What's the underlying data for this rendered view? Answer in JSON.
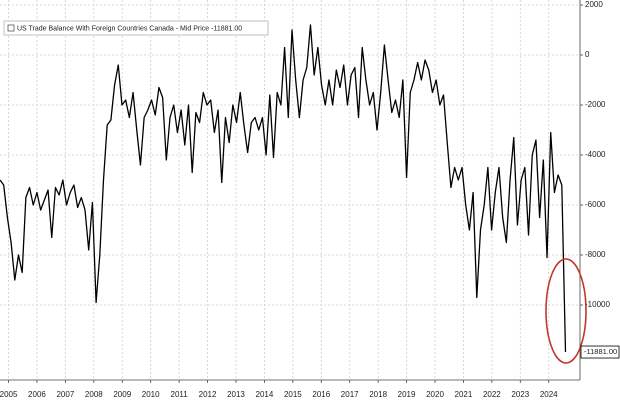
{
  "chart_data": {
    "type": "line",
    "series": [
      {
        "name": "US Trade Balance With Foreign Countries Canada - Mid Price -11881.00",
        "color": "#000000",
        "x": [
          2005.2,
          2005.33,
          2005.46,
          2005.59,
          2005.72,
          2005.85,
          2005.98,
          2006.11,
          2006.24,
          2006.37,
          2006.5,
          2006.63,
          2006.76,
          2006.89,
          2007.02,
          2007.15,
          2007.28,
          2007.41,
          2007.54,
          2007.67,
          2007.8,
          2007.93,
          2008.06,
          2008.19,
          2008.32,
          2008.45,
          2008.58,
          2008.71,
          2008.84,
          2008.97,
          2009.1,
          2009.23,
          2009.36,
          2009.49,
          2009.62,
          2009.75,
          2009.88,
          2010.01,
          2010.14,
          2010.27,
          2010.4,
          2010.53,
          2010.66,
          2010.79,
          2010.92,
          2011.05,
          2011.18,
          2011.31,
          2011.44,
          2011.57,
          2011.7,
          2011.83,
          2011.96,
          2012.09,
          2012.22,
          2012.35,
          2012.48,
          2012.61,
          2012.74,
          2012.87,
          2013,
          2013.13,
          2013.26,
          2013.39,
          2013.52,
          2013.65,
          2013.78,
          2013.91,
          2014.04,
          2014.17,
          2014.3,
          2014.43,
          2014.56,
          2014.69,
          2014.82,
          2014.95,
          2015.08,
          2015.21,
          2015.34,
          2015.47,
          2015.6,
          2015.73,
          2015.86,
          2015.99,
          2016.12,
          2016.25,
          2016.38,
          2016.51,
          2016.64,
          2016.77,
          2016.9,
          2017.03,
          2017.16,
          2017.29,
          2017.42,
          2017.55,
          2017.68,
          2017.81,
          2017.94,
          2018.07,
          2018.2,
          2018.33,
          2018.46,
          2018.59,
          2018.72,
          2018.85,
          2018.98,
          2019.11,
          2019.24,
          2019.37,
          2019.5,
          2019.63,
          2019.76,
          2019.89,
          2020.02,
          2020.15,
          2020.28,
          2020.41,
          2020.54,
          2020.67,
          2020.8,
          2020.93,
          2021.06,
          2021.19,
          2021.32,
          2021.45,
          2021.58,
          2021.71,
          2021.84,
          2021.97,
          2022.1,
          2022.23,
          2022.36,
          2022.49,
          2022.62,
          2022.75,
          2022.88,
          2023.01,
          2023.14,
          2023.27,
          2023.4,
          2023.53,
          2023.66,
          2023.79,
          2023.92,
          2024.05,
          2024.18,
          2024.31,
          2024.44,
          2024.57,
          2024.7,
          2024.83,
          2024.96,
          2025.09
        ],
        "values": [
          -5000,
          -5200,
          -6500,
          -7500,
          -9000,
          -8000,
          -8700,
          -5700,
          -5300,
          -6000,
          -5500,
          -6200,
          -5800,
          -5400,
          -7300,
          -5300,
          -5600,
          -5000,
          -6000,
          -5500,
          -5200,
          -6100,
          -5700,
          -6200,
          -7800,
          -5900,
          -9900,
          -8000,
          -5000,
          -2800,
          -2600,
          -1200,
          -400,
          -2000,
          -1800,
          -2500,
          -1500,
          -3000,
          -4400,
          -2500,
          -2200,
          -1800,
          -2400,
          -1300,
          -1700,
          -4200,
          -2500,
          -2000,
          -3100,
          -2200,
          -3600,
          -2000,
          -4700,
          -2300,
          -2700,
          -1500,
          -2000,
          -1800,
          -3100,
          -2200,
          -5100,
          -2500,
          -3500,
          -2000,
          -2700,
          -1500,
          -2800,
          -3900,
          -2700,
          -2500,
          -3000,
          -2500,
          -4000,
          -1600,
          -4100,
          -1500,
          -2000,
          300,
          -2500,
          1000,
          -1000,
          -2500,
          -1000,
          -500,
          1200,
          -800,
          300,
          -1200,
          -2000,
          -1000,
          -2000,
          -600,
          -1300,
          -400,
          -2000,
          -800,
          -500,
          -2500,
          300,
          -1000,
          -2000,
          -1500,
          -3000,
          -1500,
          400,
          -1000,
          -2300,
          -1800,
          -2500,
          -1000,
          -4900,
          -1500,
          -1000,
          -300,
          -1000,
          -200,
          -600,
          -1500,
          -1000,
          -2000,
          -1600,
          -3500,
          -5300,
          -4500,
          -5000,
          -4500,
          -6000,
          -7000,
          -5500,
          -9700,
          -7000,
          -6000,
          -4500,
          -7000,
          -5500,
          -4500,
          -6500,
          -7500,
          -5000,
          -3300,
          -6800,
          -5000,
          -4500,
          -7200,
          -4000,
          -3400,
          -6500,
          -4200,
          -8100,
          -3100,
          -5500,
          -4800,
          -5200,
          -11881
        ]
      }
    ],
    "last_price": {
      "value": -11881,
      "label": "-11881.00"
    },
    "xlim": [
      2005.2,
      2025.6
    ],
    "xticks": [
      {
        "value": 2005.5,
        "label": "2005"
      },
      {
        "value": 2006.5,
        "label": "2006"
      },
      {
        "value": 2007.5,
        "label": "2007"
      },
      {
        "value": 2008.5,
        "label": "2008"
      },
      {
        "value": 2009.5,
        "label": "2009"
      },
      {
        "value": 2010.5,
        "label": "2010"
      },
      {
        "value": 2011.5,
        "label": "2011"
      },
      {
        "value": 2012.5,
        "label": "2012"
      },
      {
        "value": 2013.5,
        "label": "2013"
      },
      {
        "value": 2014.5,
        "label": "2014"
      },
      {
        "value": 2015.5,
        "label": "2015"
      },
      {
        "value": 2016.5,
        "label": "2016"
      },
      {
        "value": 2017.5,
        "label": "2017"
      },
      {
        "value": 2018.5,
        "label": "2018"
      },
      {
        "value": 2019.5,
        "label": "2019"
      },
      {
        "value": 2020.5,
        "label": "2020"
      },
      {
        "value": 2021.5,
        "label": "2021"
      },
      {
        "value": 2022.5,
        "label": "2022"
      },
      {
        "value": 2023.5,
        "label": "2023"
      },
      {
        "value": 2024.5,
        "label": "2024"
      }
    ],
    "ylim": [
      -13000,
      2200
    ],
    "yticks": [
      2000,
      0,
      -2000,
      -4000,
      -6000,
      -8000,
      -10000
    ],
    "grid": true
  }
}
